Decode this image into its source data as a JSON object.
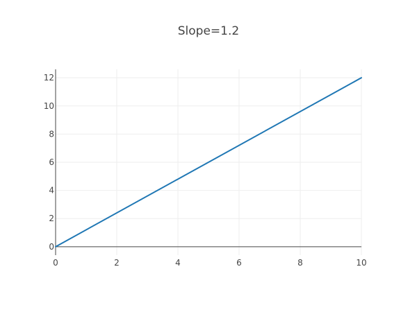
{
  "chart_data": {
    "type": "line",
    "title": "Slope=1.2",
    "xlabel": "",
    "ylabel": "",
    "xlim": [
      0,
      10
    ],
    "ylim": [
      -0.6,
      12.6
    ],
    "xticks": [
      "0",
      "2",
      "4",
      "6",
      "8",
      "10"
    ],
    "yticks": [
      "0",
      "2",
      "4",
      "6",
      "8",
      "10",
      "12"
    ],
    "grid": true,
    "series": [
      {
        "x": [
          0,
          10
        ],
        "y": [
          0,
          12
        ],
        "color": "#1f77b4"
      }
    ]
  }
}
